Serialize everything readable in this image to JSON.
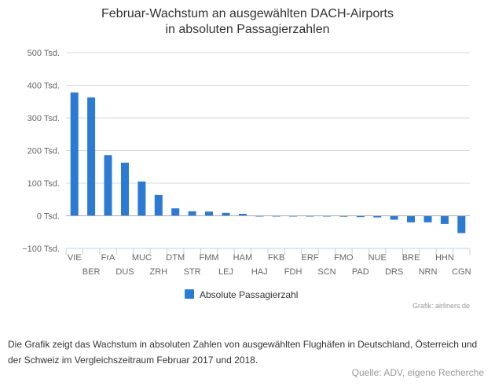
{
  "chart_data": {
    "type": "bar",
    "title_lines": [
      "Februar-Wachstum an ausgewählten DACH-Airports",
      "in absoluten Passagierzahlen"
    ],
    "categories": [
      "VIE",
      "BER",
      "FrA",
      "DUS",
      "MUC",
      "ZRH",
      "DTM",
      "STR",
      "FMM",
      "LEJ",
      "HAM",
      "HAJ",
      "FKB",
      "FDH",
      "ERF",
      "SCN",
      "FMO",
      "PAD",
      "NUE",
      "DRS",
      "BRE",
      "NRN",
      "HHN",
      "CGN"
    ],
    "series": [
      {
        "name": "Absolute Passagierzahl",
        "values": [
          378,
          363,
          186,
          163,
          105,
          64,
          23,
          14,
          13,
          9,
          6,
          2,
          -1,
          -1,
          -1,
          -1,
          -3,
          -4,
          -5,
          -12,
          -20,
          -20,
          -25,
          -53
        ]
      }
    ],
    "ylim": [
      -100,
      500
    ],
    "yticks": [
      -100,
      0,
      100,
      200,
      300,
      400,
      500
    ],
    "ytick_labels": [
      "−100 Tsd.",
      "0 Tsd.",
      "100 Tsd.",
      "200 Tsd.",
      "300 Tsd.",
      "400 Tsd.",
      "500 Tsd."
    ],
    "grid": true,
    "legend": "bottom-center",
    "bar_color": "#2b7bd4",
    "credit": "Grafik: airliners.de"
  },
  "caption": "Die Grafik zeigt das Wachstum in absoluten Zahlen von ausgewählten Flughäfen in Deutschland, Österreich und der Schweiz im Vergleichszeitraum Februar 2017 und 2018.",
  "source": "Quelle: ADV, eigene Recherche"
}
